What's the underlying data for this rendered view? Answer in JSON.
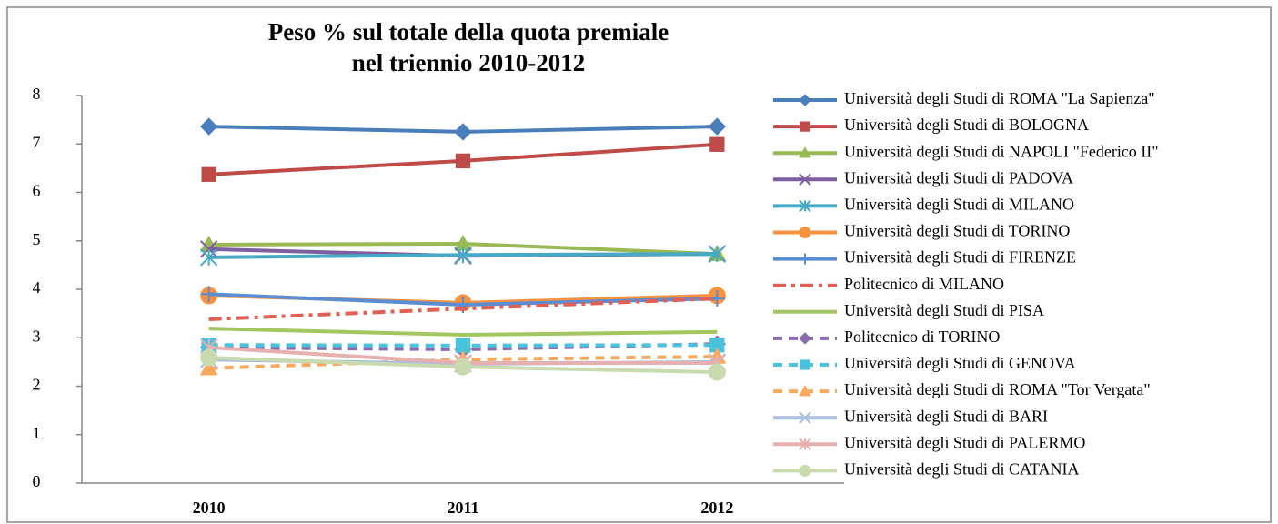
{
  "chart_data": {
    "type": "line",
    "title": [
      "Peso % sul totale della quota premiale",
      "nel triennio 2010-2012"
    ],
    "categories": [
      "2010",
      "2011",
      "2012"
    ],
    "ylim": [
      0,
      8
    ],
    "yticks": [
      0,
      1,
      2,
      3,
      4,
      5,
      6,
      7,
      8
    ],
    "grid": false,
    "legend": "right",
    "series": [
      {
        "name": "Università degli Studi di ROMA \"La Sapienza\"",
        "color": "#4a7ebb",
        "marker": "diamond",
        "dash": "solid",
        "values": [
          7.36,
          7.25,
          7.36
        ]
      },
      {
        "name": "Università degli Studi di BOLOGNA",
        "color": "#be4b48",
        "marker": "square",
        "dash": "solid",
        "values": [
          6.37,
          6.65,
          6.99
        ]
      },
      {
        "name": "Università degli Studi di NAPOLI \"Federico II\"",
        "color": "#98b954",
        "marker": "triangle",
        "dash": "solid",
        "values": [
          4.92,
          4.94,
          4.73
        ]
      },
      {
        "name": "Università degli Studi di PADOVA",
        "color": "#7d5fa0",
        "marker": "x",
        "dash": "solid",
        "values": [
          4.83,
          4.69,
          4.73
        ]
      },
      {
        "name": "Università degli Studi di MILANO",
        "color": "#46aac5",
        "marker": "star",
        "dash": "solid",
        "values": [
          4.66,
          4.71,
          4.73
        ]
      },
      {
        "name": "Università degli Studi di TORINO",
        "color": "#f69240",
        "marker": "circle",
        "dash": "solid",
        "values": [
          3.87,
          3.72,
          3.87
        ]
      },
      {
        "name": "Università degli Studi di FIRENZE",
        "color": "#5b8dd0",
        "marker": "plus",
        "dash": "solid",
        "values": [
          3.9,
          3.68,
          3.81
        ]
      },
      {
        "name": "Politecnico di MILANO",
        "color": "#e06055",
        "marker": "none",
        "dash": "dashdot",
        "values": [
          3.38,
          3.6,
          3.81
        ]
      },
      {
        "name": "Università degli Studi di PISA",
        "color": "#a2c760",
        "marker": "none",
        "dash": "solid",
        "values": [
          3.19,
          3.06,
          3.12
        ]
      },
      {
        "name": "Politecnico di TORINO",
        "color": "#8b6bb0",
        "marker": "diamond",
        "dash": "dash",
        "values": [
          2.8,
          2.76,
          2.87
        ]
      },
      {
        "name": "Università degli Studi di GENOVA",
        "color": "#4bc2dc",
        "marker": "square",
        "dash": "dash",
        "values": [
          2.85,
          2.84,
          2.85
        ]
      },
      {
        "name": "Università degli Studi di ROMA \"Tor Vergata\"",
        "color": "#f8a95e",
        "marker": "triangle",
        "dash": "dash",
        "values": [
          2.37,
          2.55,
          2.61
        ]
      },
      {
        "name": "Università degli Studi di BARI",
        "color": "#a9bde0",
        "marker": "x",
        "dash": "solid",
        "values": [
          2.55,
          2.46,
          2.5
        ]
      },
      {
        "name": "Università degli Studi di PALERMO",
        "color": "#e6b0b0",
        "marker": "star",
        "dash": "solid",
        "values": [
          2.8,
          2.48,
          2.48
        ]
      },
      {
        "name": "Università degli Studi di CATANIA",
        "color": "#c9dbae",
        "marker": "circle",
        "dash": "solid",
        "values": [
          2.59,
          2.4,
          2.29
        ]
      }
    ]
  }
}
